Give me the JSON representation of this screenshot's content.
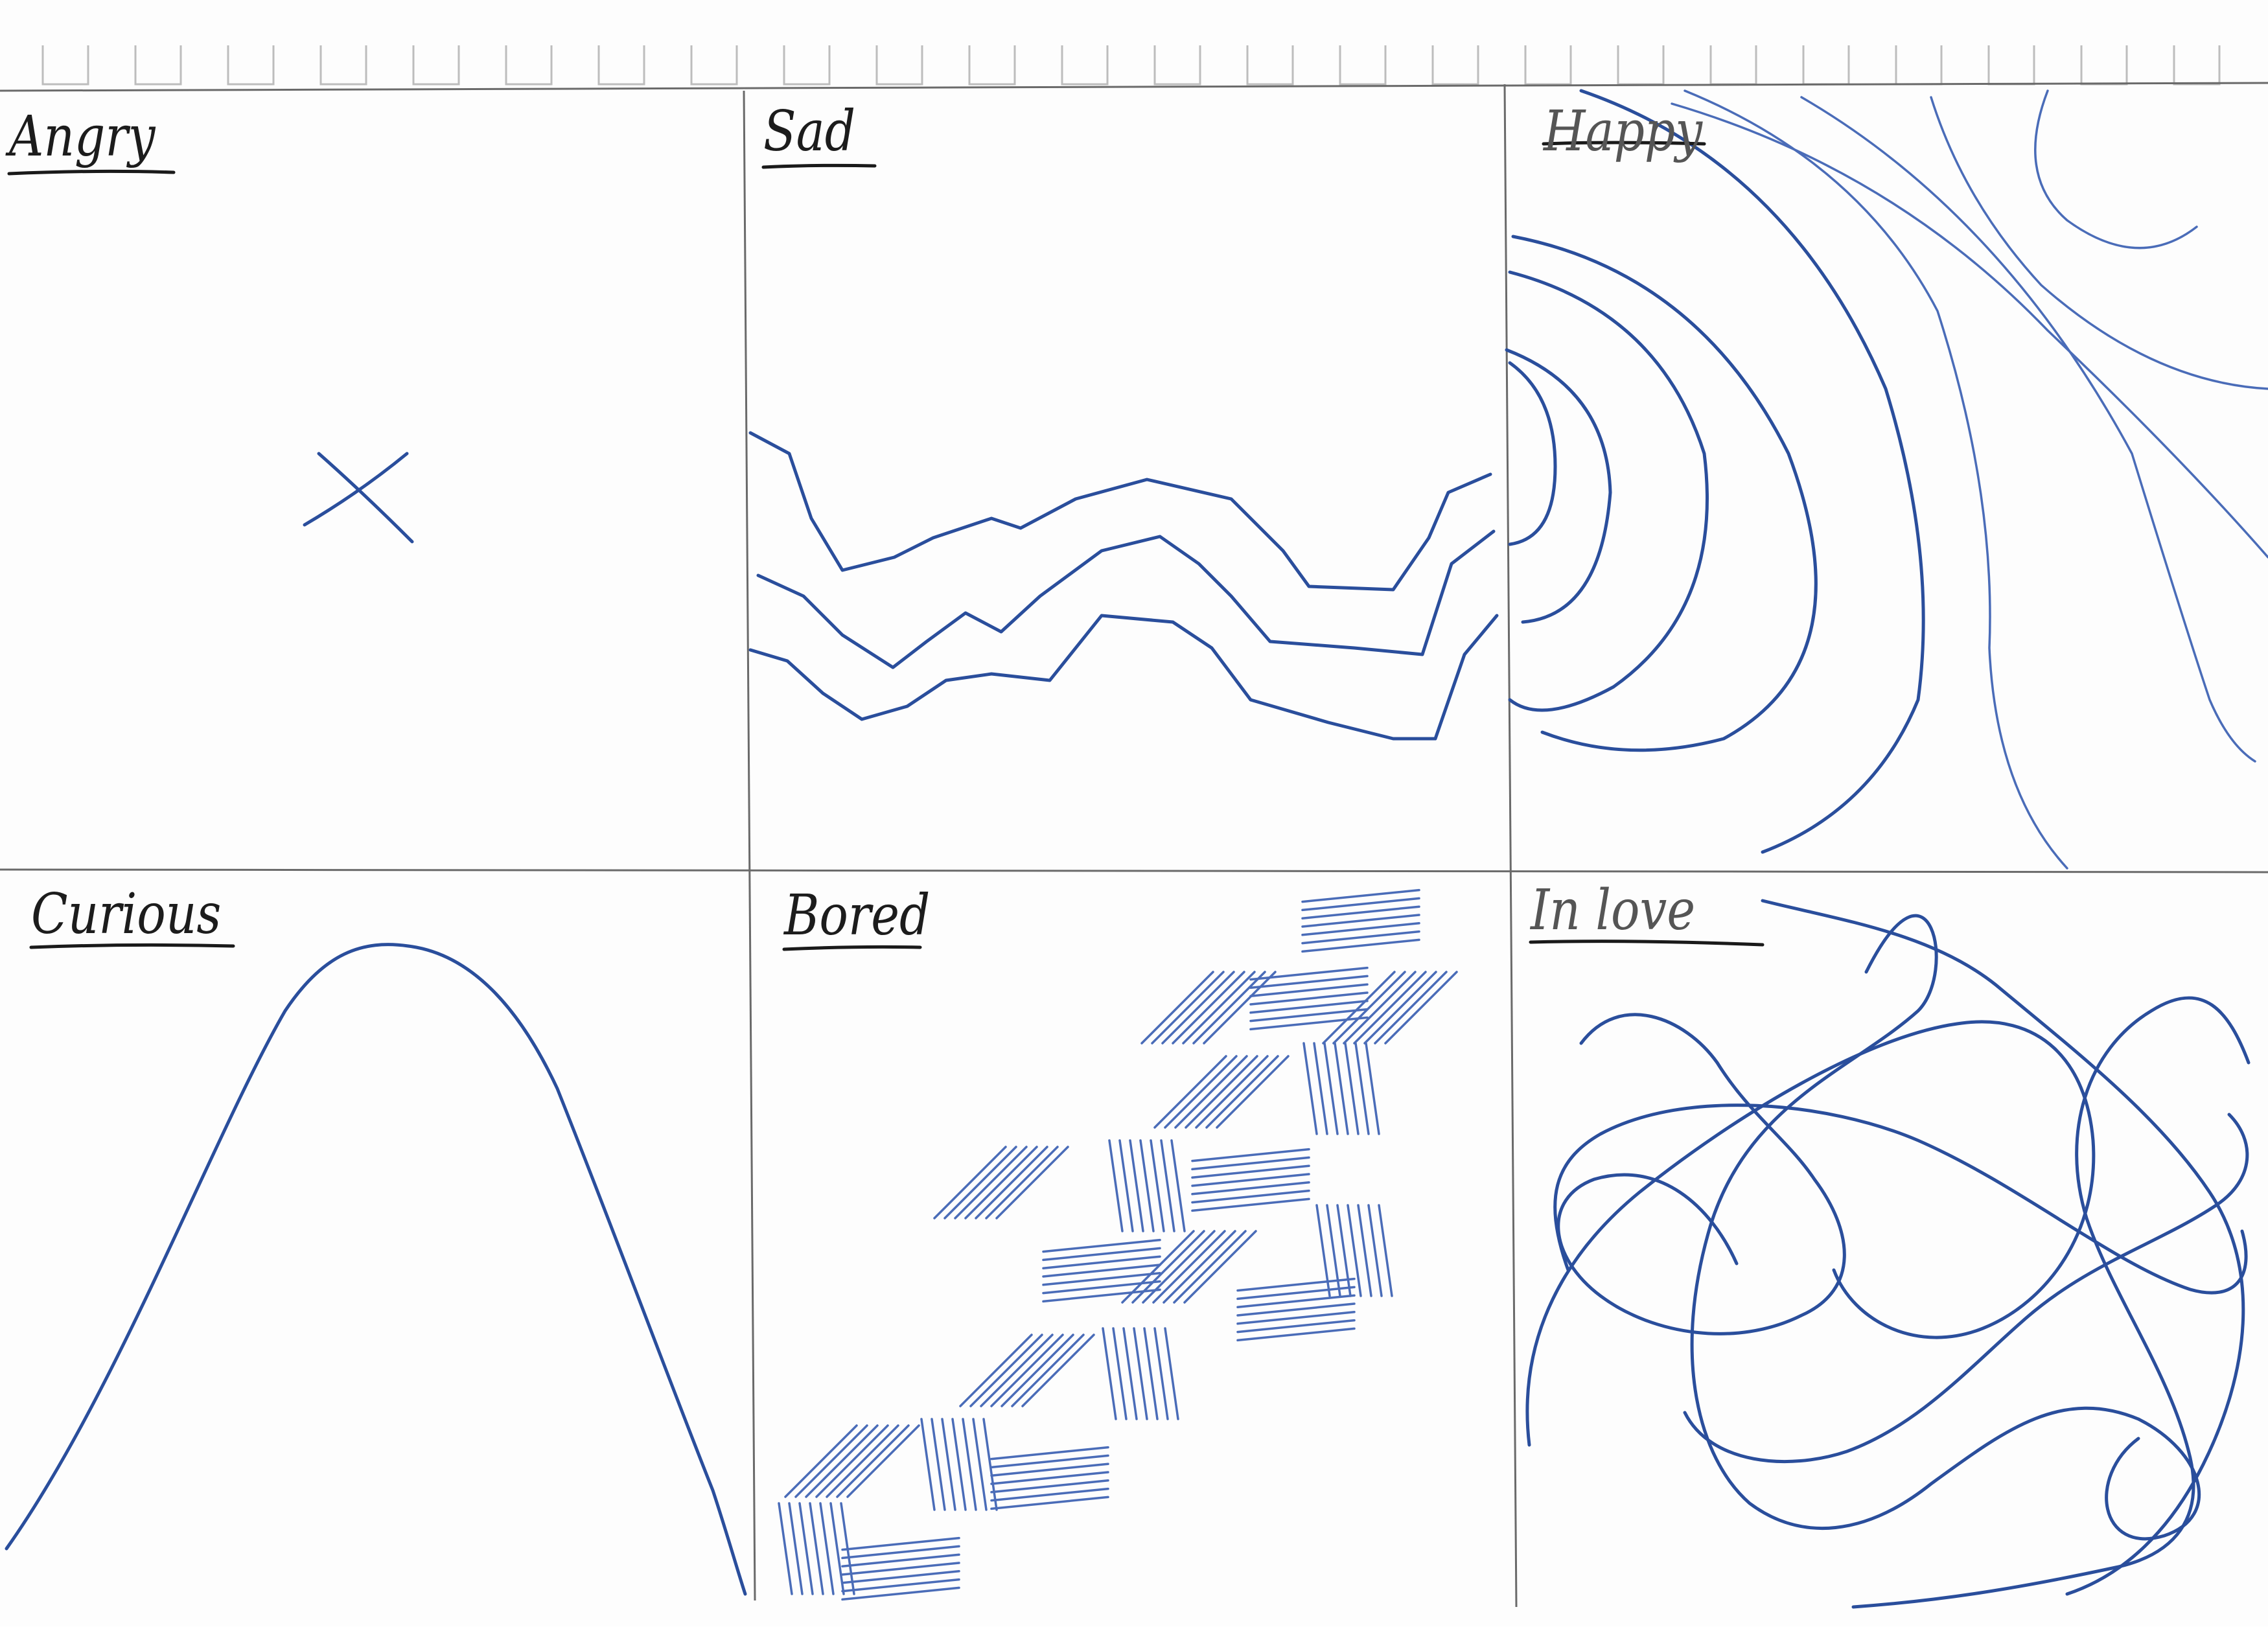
{
  "panels": {
    "angry": {
      "label": "Angry"
    },
    "sad": {
      "label": "Sad"
    },
    "happy": {
      "label": "Happy"
    },
    "curious": {
      "label": "Curious"
    },
    "bored": {
      "label": "Bored"
    },
    "in_love": {
      "label": "In love"
    }
  },
  "colors": {
    "ink": "#2a4e9c",
    "pencil": "#1c1c1c",
    "paper": "#fdfdfd"
  }
}
